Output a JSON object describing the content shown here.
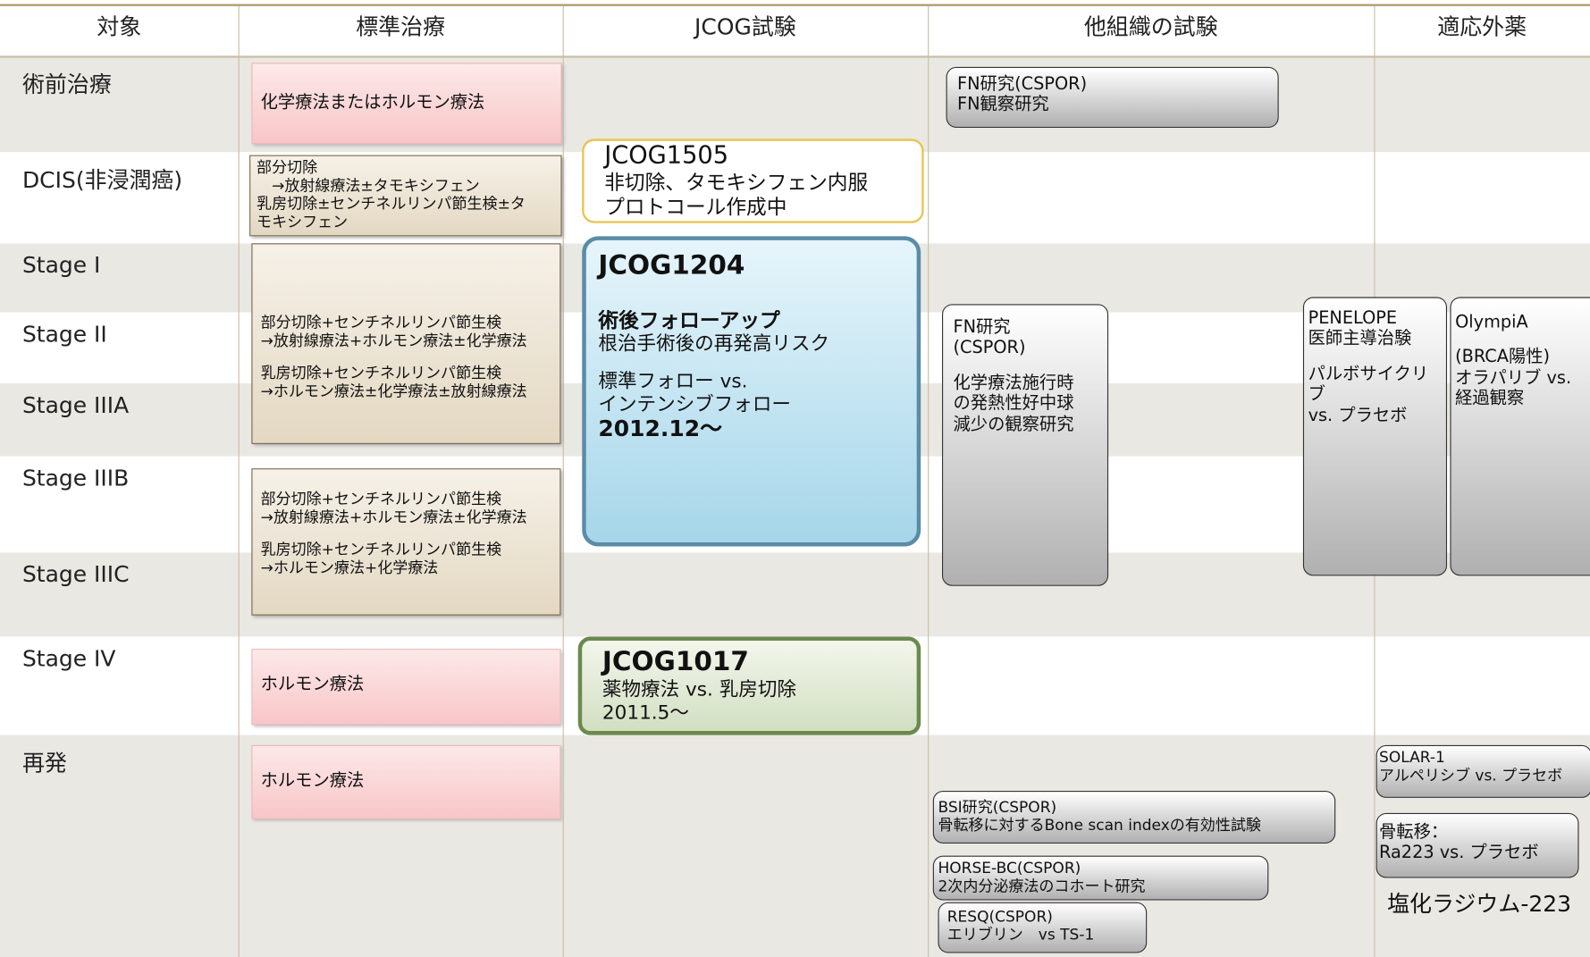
{
  "header": [
    "対象",
    "標準治療",
    "JCOG試験",
    "他組織の試験",
    "適応外薬"
  ],
  "rows": [
    "術前治療",
    "DCIS(非浸潤癌)",
    "Stage I",
    "Stage II",
    "Stage IIIA",
    "Stage IIIB",
    "Stage IIIC",
    "Stage IV",
    "再発"
  ],
  "boxes": [
    {
      "paragraphs": [
        [
          "化学療法またはホルモン療法"
        ]
      ]
    },
    {
      "paragraphs": [
        [
          "部分切除",
          "　→放射線療法±タモキシフェン",
          "乳房切除±センチネルリンパ節生検±タ",
          "モキシフェン"
        ]
      ]
    },
    {
      "paragraphs": [
        [
          "部分切除+センチネルリンパ節生検",
          "→放射線療法+ホルモン療法±化学療法"
        ],
        [
          "乳房切除+センチネルリンパ節生検",
          "→ホルモン療法±化学療法±放射線療法"
        ]
      ]
    },
    {
      "paragraphs": [
        [
          "部分切除+センチネルリンパ節生検",
          "→放射線療法+ホルモン療法±化学療法"
        ],
        [
          "乳房切除+センチネルリンパ節生検",
          "→ホルモン療法+化学療法"
        ]
      ]
    },
    {
      "paragraphs": [
        [
          "ホルモン療法"
        ]
      ]
    },
    {
      "paragraphs": [
        [
          "ホルモン療法"
        ]
      ]
    },
    {
      "paragraphs": [
        [
          "JCOG1505",
          "非切除、タモキシフェン内服",
          "プロトコール作成中"
        ]
      ]
    },
    {
      "paragraphs": [
        [
          "JCOG1204"
        ],
        [
          "術後フォローアップ",
          "根治手術後の再発高リスク"
        ],
        [
          "標準フォロー vs.",
          "インテンシブフォロー",
          "2012.12〜"
        ]
      ]
    },
    {
      "paragraphs": [
        [
          "JCOG1017",
          "薬物療法 vs. 乳房切除",
          "2011.5〜"
        ]
      ]
    },
    {
      "paragraphs": [
        [
          "FN研究(CSPOR)",
          "FN観察研究"
        ]
      ]
    },
    {
      "paragraphs": [
        [
          "FN研究",
          "(CSPOR)"
        ],
        [
          "化学療法施行時",
          "の発熱性好中球",
          "減少の観察研究"
        ]
      ]
    },
    {
      "paragraphs": [
        [
          "PENELOPE",
          "医師主導治験"
        ],
        [
          "パルボサイクリ",
          "ブ",
          " vs. プラセボ"
        ]
      ]
    },
    {
      "paragraphs": [
        [
          "OlympiA"
        ],
        [
          "(BRCA陽性)",
          "オラパリブ vs.",
          "経過観察"
        ]
      ]
    },
    {
      "paragraphs": [
        [
          "BSI研究(CSPOR)",
          "骨転移に対するBone scan indexの有効性試験"
        ]
      ]
    },
    {
      "paragraphs": [
        [
          "HORSE-BC(CSPOR)",
          "2次内分泌療法のコホート研究"
        ]
      ]
    },
    {
      "paragraphs": [
        [
          "RESQ(CSPOR)",
          "エリブリン　vs TS-1"
        ]
      ]
    },
    {
      "paragraphs": [
        [
          "SOLAR-1",
          "アルペリシブ vs. プラセボ"
        ]
      ]
    },
    {
      "paragraphs": [
        [
          "骨転移：",
          "Ra223 vs. プラセボ"
        ]
      ]
    }
  ],
  "note": "塩化ラジウム-223"
}
